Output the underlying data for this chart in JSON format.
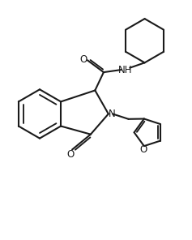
{
  "bg_color": "#ffffff",
  "line_color": "#1a1a1a",
  "line_width": 1.5,
  "font_size": 8.5,
  "figsize": [
    2.37,
    2.96
  ],
  "dpi": 100,
  "xlim": [
    0,
    10
  ],
  "ylim": [
    0,
    12.5
  ]
}
